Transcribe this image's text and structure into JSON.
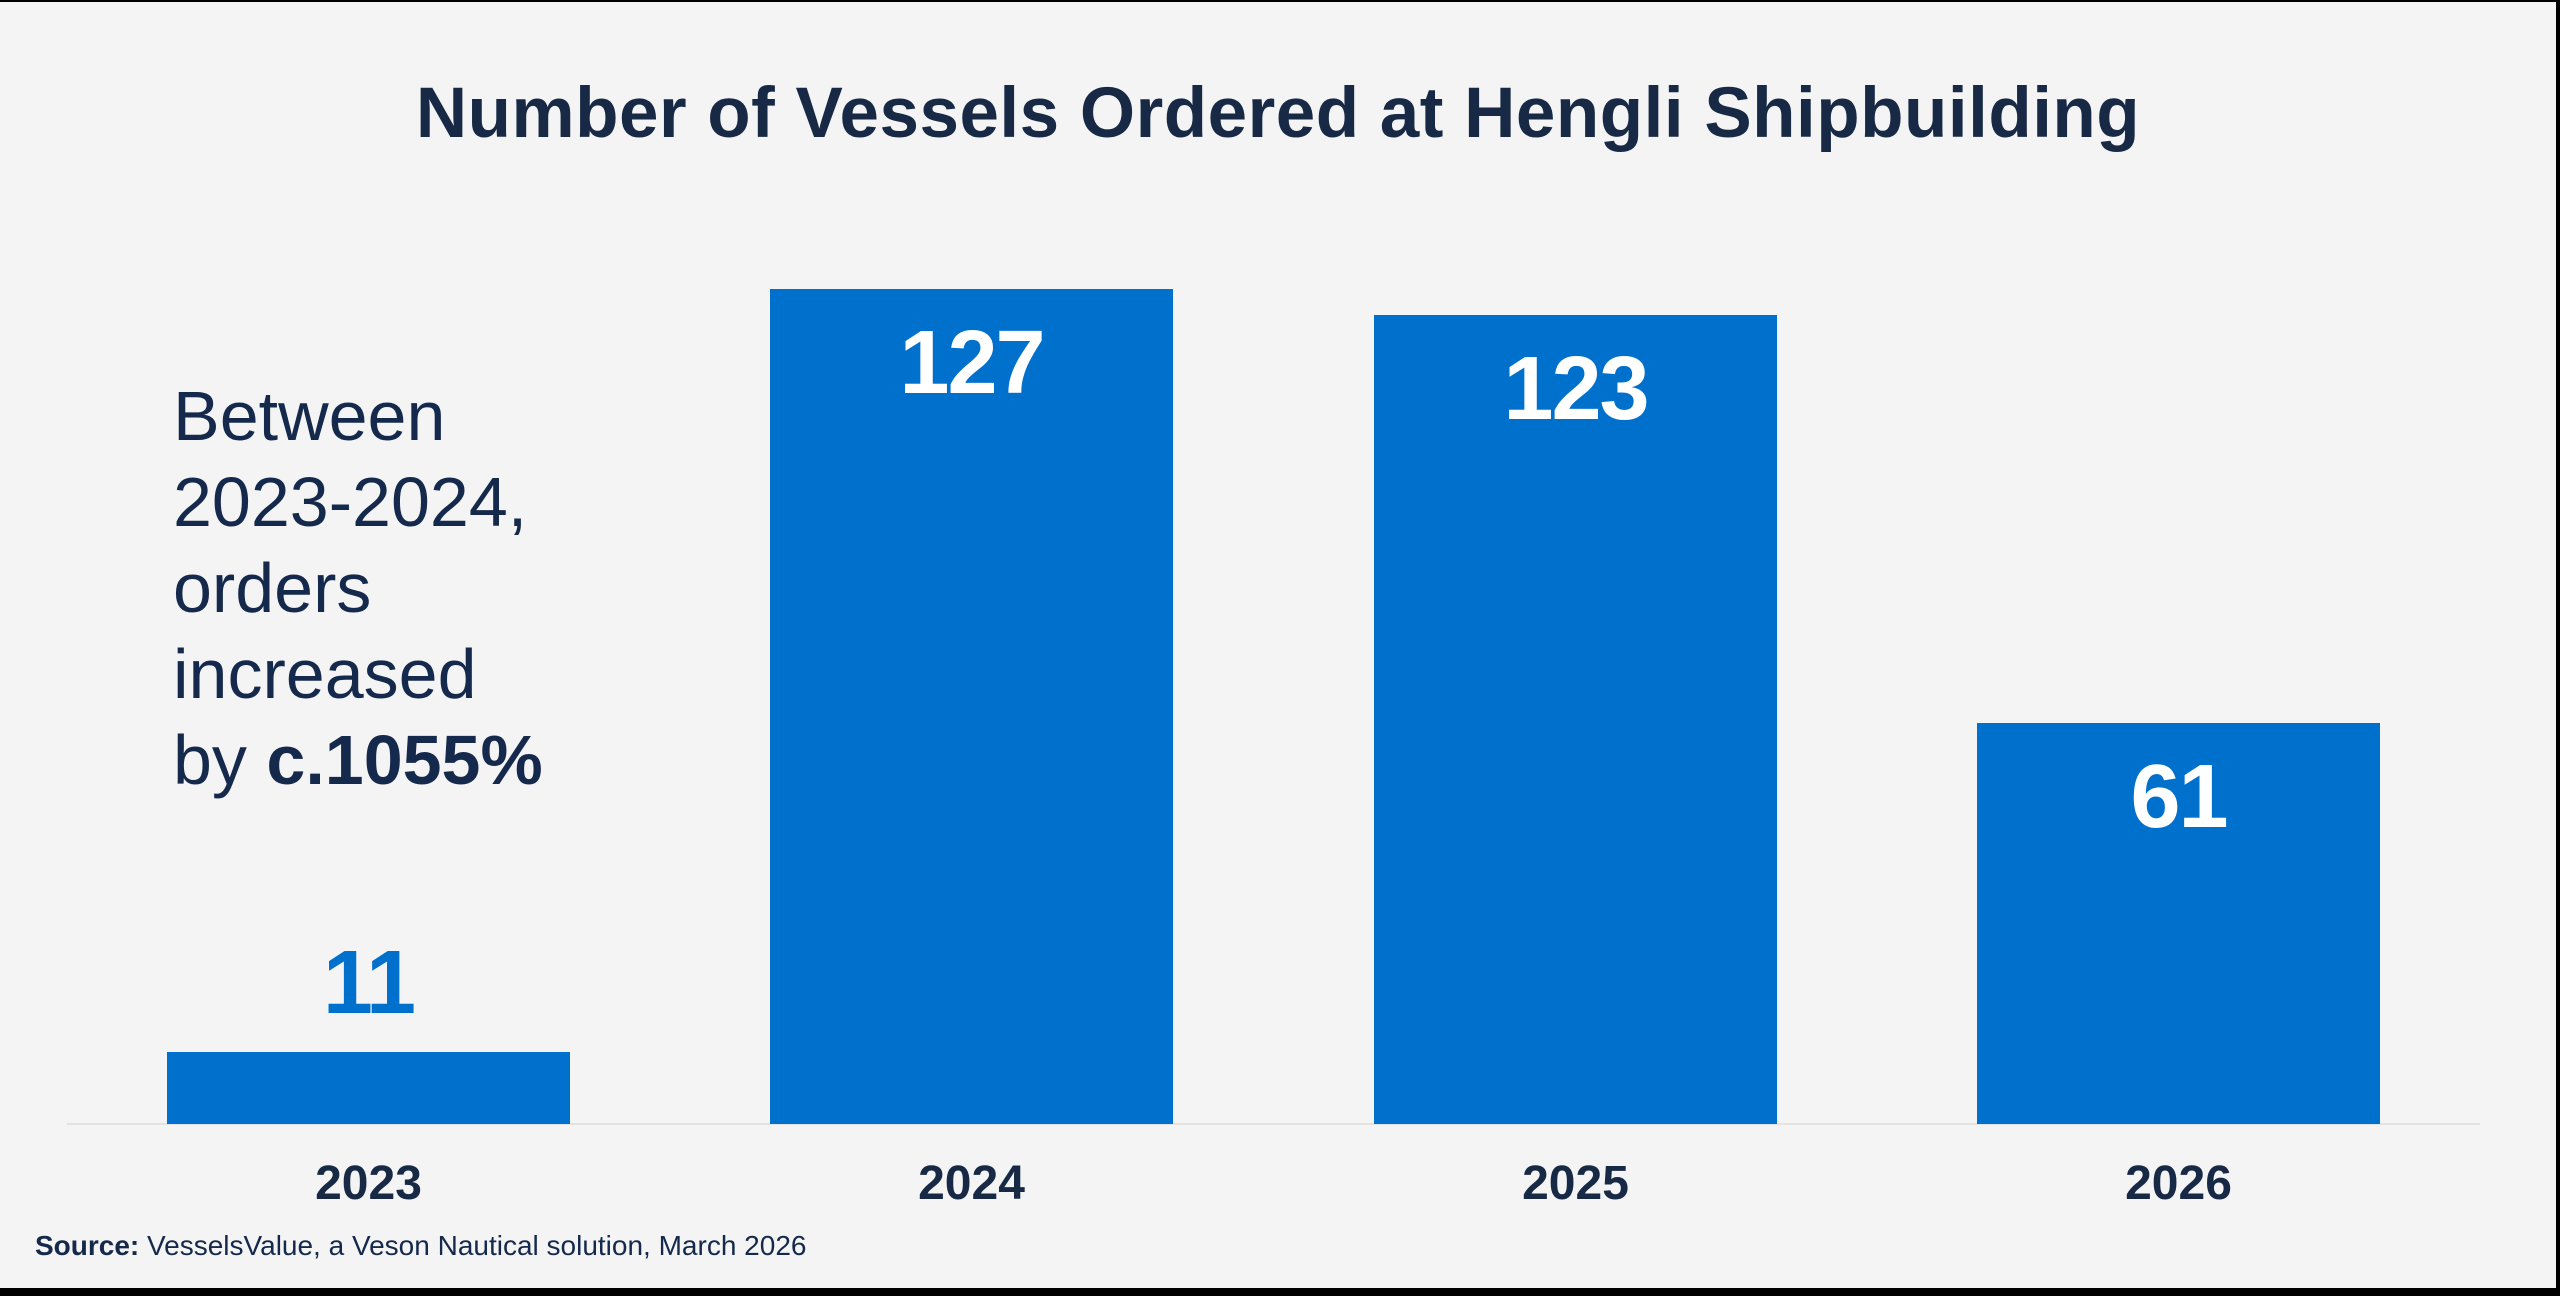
{
  "chart_data": {
    "type": "bar",
    "title": "Number of Vessels Ordered at Hengli Shipbuilding",
    "categories": [
      "2023",
      "2024",
      "2025",
      "2026"
    ],
    "values": [
      11,
      127,
      123,
      61
    ],
    "value_labels": [
      "11",
      "127",
      "123",
      "61"
    ],
    "xlabel": "",
    "ylabel": "",
    "ylim": [
      0,
      127
    ],
    "grid": false,
    "legend": null,
    "annotation": {
      "lines": [
        "Between",
        "2023-2024,",
        "orders",
        "increased"
      ],
      "last_line_prefix": "by ",
      "last_line_emphasis": "c.1055%"
    },
    "source": {
      "label": "Source:",
      "text": " VesselsValue, a Veson Nautical solution, March 2026"
    }
  },
  "colors": {
    "bar": "#0070CD",
    "title": "#172945",
    "text": "#14294B",
    "background": "#F4F4F4",
    "axis": "#E3E3E3",
    "inside_label": "#FFFFFF",
    "outside_label": "#0070CD"
  }
}
